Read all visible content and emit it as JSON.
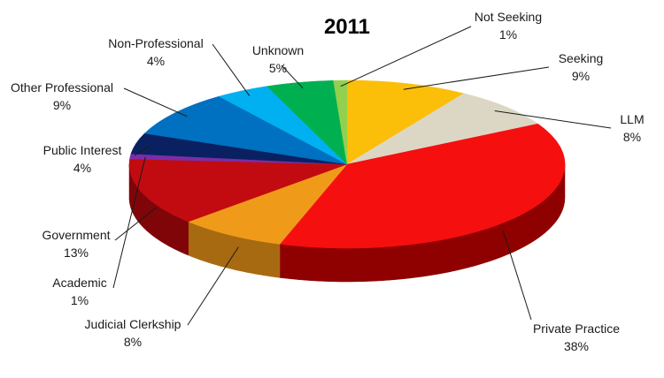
{
  "chart_data": {
    "type": "pie",
    "title": "2011",
    "slices": [
      {
        "label": "Seeking",
        "value": 9,
        "display": "9%",
        "color": "#FBBF0A",
        "side": "#C59300"
      },
      {
        "label": "LLM",
        "value": 8,
        "display": "8%",
        "color": "#DCD7C5",
        "side": "#ABA68F"
      },
      {
        "label": "Private Practice",
        "value": 38,
        "display": "38%",
        "color": "#F50F0F",
        "side": "#8F0000"
      },
      {
        "label": "Judicial Clerkship",
        "value": 8,
        "display": "8%",
        "color": "#F09A1A",
        "side": "#A86A10"
      },
      {
        "label": "Government",
        "value": 13,
        "display": "13%",
        "color": "#C20B10",
        "side": "#800508"
      },
      {
        "label": "Academic",
        "value": 1,
        "display": "1%",
        "color": "#7B2DA8",
        "side": "#4F1C70"
      },
      {
        "label": "Public Interest",
        "value": 4,
        "display": "4%",
        "color": "#0A2161",
        "side": "#061441"
      },
      {
        "label": "Other Professional",
        "value": 9,
        "display": "9%",
        "color": "#0070C0",
        "side": "#004F88"
      },
      {
        "label": "Non-Professional",
        "value": 4,
        "display": "4%",
        "color": "#00B0F0",
        "side": "#0080B0"
      },
      {
        "label": "Unknown",
        "value": 5,
        "display": "5%",
        "color": "#00B050",
        "side": "#007A36"
      },
      {
        "label": "Not Seeking",
        "value": 1,
        "display": "1%",
        "color": "#92D050",
        "side": "#64961F"
      }
    ],
    "legend": "none",
    "style": "3d-exploded-labels"
  }
}
